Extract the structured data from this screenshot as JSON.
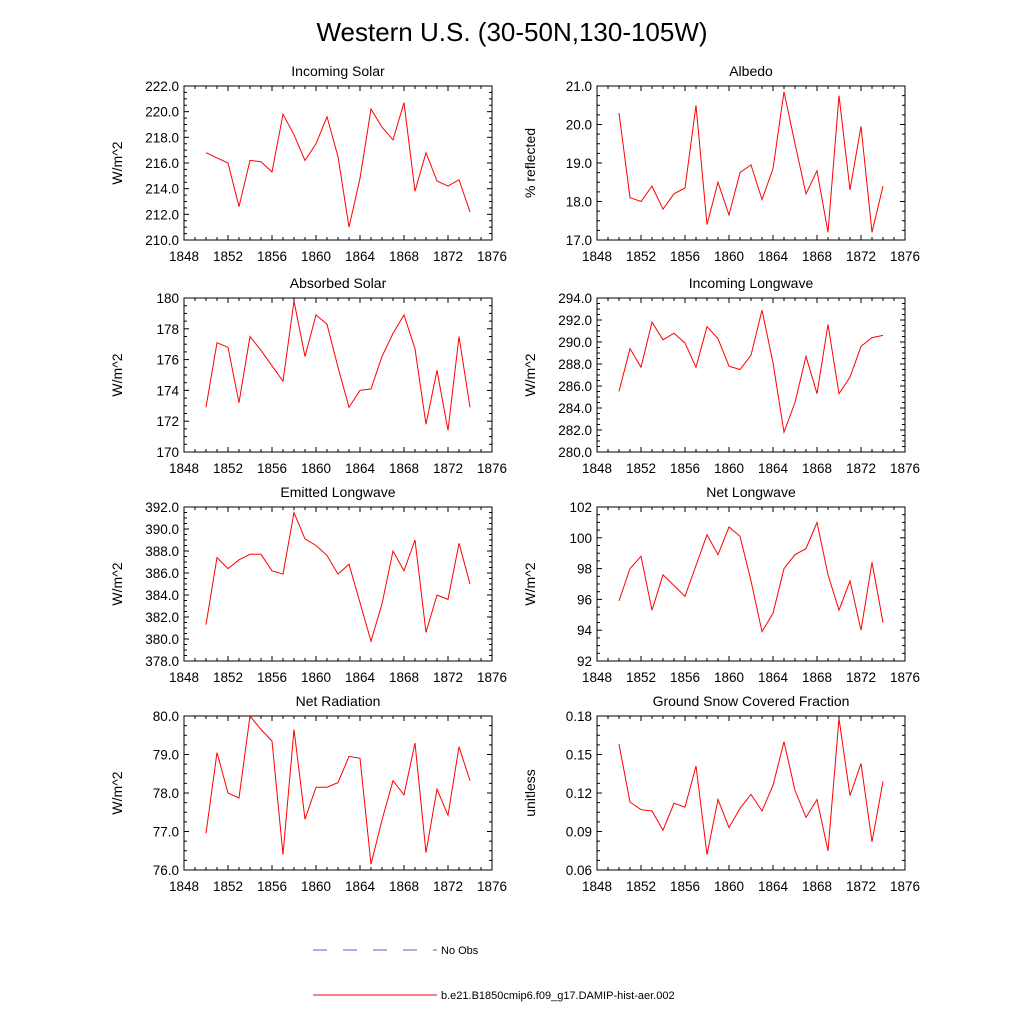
{
  "figure": {
    "title": "Western U.S. (30-50N,130-105W)",
    "legend": [
      {
        "label": "No Obs",
        "style": "dashed",
        "color": "#5560c8"
      },
      {
        "label": "b.e21.B1850cmip6.f09_g17.DAMIP-hist-aer.002",
        "style": "solid",
        "color": "#ff0000"
      }
    ]
  },
  "colors": {
    "series": "#ff0000",
    "axes": "#000000",
    "background": "#ffffff"
  },
  "chart_data": [
    {
      "type": "line",
      "title": "Incoming Solar",
      "ylabel": "W/m^2",
      "xlim": [
        1848,
        1876
      ],
      "xticks": [
        1848,
        1852,
        1856,
        1860,
        1864,
        1868,
        1872,
        1876
      ],
      "xtick_labels": [
        "1848",
        "1852",
        "1856",
        "1860",
        "1864",
        "1868",
        "1872",
        "1876"
      ],
      "ylim": [
        210,
        222
      ],
      "yticks": [
        210,
        212,
        214,
        216,
        218,
        220,
        222
      ],
      "ytick_labels": [
        "210.0",
        "212.0",
        "214.0",
        "216.0",
        "218.0",
        "220.0",
        "222.0"
      ],
      "x": [
        1850,
        1851,
        1852,
        1853,
        1854,
        1855,
        1856,
        1857,
        1858,
        1859,
        1860,
        1861,
        1862,
        1863,
        1864,
        1865,
        1866,
        1867,
        1868,
        1869,
        1870,
        1871,
        1872,
        1873,
        1874
      ],
      "series": [
        {
          "name": "b.e21.B1850cmip6.f09_g17.DAMIP-hist-aer.002",
          "values": [
            216.8,
            216.4,
            216.0,
            212.6,
            216.2,
            216.1,
            215.3,
            219.8,
            218.2,
            216.2,
            217.5,
            219.6,
            216.5,
            211.0,
            214.8,
            220.2,
            218.8,
            217.8,
            220.7,
            213.8,
            216.8,
            214.6,
            214.2,
            214.7,
            212.2
          ]
        }
      ]
    },
    {
      "type": "line",
      "title": "Albedo",
      "ylabel": "% reflected",
      "xlim": [
        1848,
        1876
      ],
      "xticks": [
        1848,
        1852,
        1856,
        1860,
        1864,
        1868,
        1872,
        1876
      ],
      "xtick_labels": [
        "1848",
        "1852",
        "1856",
        "1860",
        "1864",
        "1868",
        "1872",
        "1876"
      ],
      "ylim": [
        17,
        21
      ],
      "yticks": [
        17,
        18,
        19,
        20,
        21
      ],
      "ytick_labels": [
        "17.0",
        "18.0",
        "19.0",
        "20.0",
        "21.0"
      ],
      "x": [
        1850,
        1851,
        1852,
        1853,
        1854,
        1855,
        1856,
        1857,
        1858,
        1859,
        1860,
        1861,
        1862,
        1863,
        1864,
        1865,
        1866,
        1867,
        1868,
        1869,
        1870,
        1871,
        1872,
        1873,
        1874
      ],
      "series": [
        {
          "name": "b.e21.B1850cmip6.f09_g17.DAMIP-hist-aer.002",
          "values": [
            20.3,
            18.1,
            18.0,
            18.4,
            17.8,
            18.2,
            18.35,
            20.5,
            17.4,
            18.5,
            17.65,
            18.75,
            18.95,
            18.05,
            18.85,
            20.85,
            19.5,
            18.2,
            18.8,
            17.2,
            20.75,
            18.3,
            19.95,
            17.2,
            18.4
          ]
        }
      ]
    },
    {
      "type": "line",
      "title": "Absorbed Solar",
      "ylabel": "W/m^2",
      "xlim": [
        1848,
        1876
      ],
      "xticks": [
        1848,
        1852,
        1856,
        1860,
        1864,
        1868,
        1872,
        1876
      ],
      "xtick_labels": [
        "1848",
        "1852",
        "1856",
        "1860",
        "1864",
        "1868",
        "1872",
        "1876"
      ],
      "ylim": [
        170,
        180
      ],
      "yticks": [
        170,
        172,
        174,
        176,
        178,
        180
      ],
      "ytick_labels": [
        "170",
        "172",
        "174",
        "176",
        "178",
        "180"
      ],
      "x": [
        1850,
        1851,
        1852,
        1853,
        1854,
        1855,
        1856,
        1857,
        1858,
        1859,
        1860,
        1861,
        1862,
        1863,
        1864,
        1865,
        1866,
        1867,
        1868,
        1869,
        1870,
        1871,
        1872,
        1873,
        1874
      ],
      "series": [
        {
          "name": "b.e21.B1850cmip6.f09_g17.DAMIP-hist-aer.002",
          "values": [
            172.9,
            177.1,
            176.8,
            173.2,
            177.5,
            176.6,
            175.6,
            174.6,
            179.8,
            176.2,
            178.9,
            178.3,
            175.5,
            172.9,
            174.0,
            174.1,
            176.2,
            177.7,
            178.9,
            176.7,
            171.8,
            175.3,
            171.4,
            177.5,
            172.9
          ]
        }
      ]
    },
    {
      "type": "line",
      "title": "Incoming Longwave",
      "ylabel": "W/m^2",
      "xlim": [
        1848,
        1876
      ],
      "xticks": [
        1848,
        1852,
        1856,
        1860,
        1864,
        1868,
        1872,
        1876
      ],
      "xtick_labels": [
        "1848",
        "1852",
        "1856",
        "1860",
        "1864",
        "1868",
        "1872",
        "1876"
      ],
      "ylim": [
        280,
        294
      ],
      "yticks": [
        280,
        282,
        284,
        286,
        288,
        290,
        292,
        294
      ],
      "ytick_labels": [
        "280.0",
        "282.0",
        "284.0",
        "286.0",
        "288.0",
        "290.0",
        "292.0",
        "294.0"
      ],
      "x": [
        1850,
        1851,
        1852,
        1853,
        1854,
        1855,
        1856,
        1857,
        1858,
        1859,
        1860,
        1861,
        1862,
        1863,
        1864,
        1865,
        1866,
        1867,
        1868,
        1869,
        1870,
        1871,
        1872,
        1873,
        1874
      ],
      "series": [
        {
          "name": "b.e21.B1850cmip6.f09_g17.DAMIP-hist-aer.002",
          "values": [
            285.5,
            289.4,
            287.7,
            291.8,
            290.2,
            290.8,
            289.9,
            287.7,
            291.4,
            290.3,
            287.8,
            287.5,
            288.8,
            292.9,
            288.1,
            281.8,
            284.5,
            288.7,
            285.3,
            291.6,
            285.3,
            286.8,
            289.6,
            290.4,
            290.6
          ]
        }
      ]
    },
    {
      "type": "line",
      "title": "Emitted Longwave",
      "ylabel": "W/m^2",
      "xlim": [
        1848,
        1876
      ],
      "xticks": [
        1848,
        1852,
        1856,
        1860,
        1864,
        1868,
        1872,
        1876
      ],
      "xtick_labels": [
        "1848",
        "1852",
        "1856",
        "1860",
        "1864",
        "1868",
        "1872",
        "1876"
      ],
      "ylim": [
        378,
        392
      ],
      "yticks": [
        378,
        380,
        382,
        384,
        386,
        388,
        390,
        392
      ],
      "ytick_labels": [
        "378.0",
        "380.0",
        "382.0",
        "384.0",
        "386.0",
        "388.0",
        "390.0",
        "392.0"
      ],
      "x": [
        1850,
        1851,
        1852,
        1853,
        1854,
        1855,
        1856,
        1857,
        1858,
        1859,
        1860,
        1861,
        1862,
        1863,
        1864,
        1865,
        1866,
        1867,
        1868,
        1869,
        1870,
        1871,
        1872,
        1873,
        1874
      ],
      "series": [
        {
          "name": "b.e21.B1850cmip6.f09_g17.DAMIP-hist-aer.002",
          "values": [
            381.3,
            387.4,
            386.4,
            387.2,
            387.7,
            387.7,
            386.2,
            385.9,
            391.5,
            389.1,
            388.5,
            387.6,
            385.9,
            386.8,
            383.3,
            379.8,
            383.2,
            388.0,
            386.2,
            389.0,
            380.6,
            384.0,
            383.6,
            388.7,
            385.0
          ]
        }
      ]
    },
    {
      "type": "line",
      "title": "Net Longwave",
      "ylabel": "W/m^2",
      "xlim": [
        1848,
        1876
      ],
      "xticks": [
        1848,
        1852,
        1856,
        1860,
        1864,
        1868,
        1872,
        1876
      ],
      "xtick_labels": [
        "1848",
        "1852",
        "1856",
        "1860",
        "1864",
        "1868",
        "1872",
        "1876"
      ],
      "ylim": [
        92,
        102
      ],
      "yticks": [
        92,
        94,
        96,
        98,
        100,
        102
      ],
      "ytick_labels": [
        "92",
        "94",
        "96",
        "98",
        "100",
        "102"
      ],
      "x": [
        1850,
        1851,
        1852,
        1853,
        1854,
        1855,
        1856,
        1857,
        1858,
        1859,
        1860,
        1861,
        1862,
        1863,
        1864,
        1865,
        1866,
        1867,
        1868,
        1869,
        1870,
        1871,
        1872,
        1873,
        1874
      ],
      "series": [
        {
          "name": "b.e21.B1850cmip6.f09_g17.DAMIP-hist-aer.002",
          "values": [
            95.9,
            98.0,
            98.8,
            95.3,
            97.6,
            96.9,
            96.2,
            98.2,
            100.2,
            98.9,
            100.7,
            100.1,
            97.2,
            93.9,
            95.1,
            98.0,
            98.9,
            99.3,
            101.0,
            97.6,
            95.3,
            97.2,
            94.0,
            98.4,
            94.5
          ]
        }
      ]
    },
    {
      "type": "line",
      "title": "Net Radiation",
      "ylabel": "W/m^2",
      "xlim": [
        1848,
        1876
      ],
      "xticks": [
        1848,
        1852,
        1856,
        1860,
        1864,
        1868,
        1872,
        1876
      ],
      "xtick_labels": [
        "1848",
        "1852",
        "1856",
        "1860",
        "1864",
        "1868",
        "1872",
        "1876"
      ],
      "ylim": [
        76,
        80
      ],
      "yticks": [
        76,
        77,
        78,
        79,
        80
      ],
      "ytick_labels": [
        "76.0",
        "77.0",
        "78.0",
        "79.0",
        "80.0"
      ],
      "x": [
        1850,
        1851,
        1852,
        1853,
        1854,
        1855,
        1856,
        1857,
        1858,
        1859,
        1860,
        1861,
        1862,
        1863,
        1864,
        1865,
        1866,
        1867,
        1868,
        1869,
        1870,
        1871,
        1872,
        1873,
        1874
      ],
      "series": [
        {
          "name": "b.e21.B1850cmip6.f09_g17.DAMIP-hist-aer.002",
          "values": [
            76.95,
            79.05,
            78.0,
            77.87,
            80.0,
            79.65,
            79.35,
            76.4,
            79.65,
            77.32,
            78.15,
            78.15,
            78.27,
            78.95,
            78.9,
            76.15,
            77.3,
            78.32,
            77.95,
            79.3,
            76.45,
            78.1,
            77.42,
            79.2,
            78.32
          ]
        }
      ]
    },
    {
      "type": "line",
      "title": "Ground Snow Covered Fraction",
      "ylabel": "unitless",
      "xlim": [
        1848,
        1876
      ],
      "xticks": [
        1848,
        1852,
        1856,
        1860,
        1864,
        1868,
        1872,
        1876
      ],
      "xtick_labels": [
        "1848",
        "1852",
        "1856",
        "1860",
        "1864",
        "1868",
        "1872",
        "1876"
      ],
      "ylim": [
        0.06,
        0.18
      ],
      "yticks": [
        0.06,
        0.09,
        0.12,
        0.15,
        0.18
      ],
      "ytick_labels": [
        "0.06",
        "0.09",
        "0.12",
        "0.15",
        "0.18"
      ],
      "x": [
        1850,
        1851,
        1852,
        1853,
        1854,
        1855,
        1856,
        1857,
        1858,
        1859,
        1860,
        1861,
        1862,
        1863,
        1864,
        1865,
        1866,
        1867,
        1868,
        1869,
        1870,
        1871,
        1872,
        1873,
        1874
      ],
      "series": [
        {
          "name": "b.e21.B1850cmip6.f09_g17.DAMIP-hist-aer.002",
          "values": [
            0.158,
            0.113,
            0.107,
            0.106,
            0.091,
            0.112,
            0.109,
            0.141,
            0.072,
            0.115,
            0.093,
            0.108,
            0.119,
            0.106,
            0.126,
            0.16,
            0.122,
            0.101,
            0.115,
            0.075,
            0.178,
            0.118,
            0.143,
            0.082,
            0.129
          ]
        }
      ]
    }
  ]
}
